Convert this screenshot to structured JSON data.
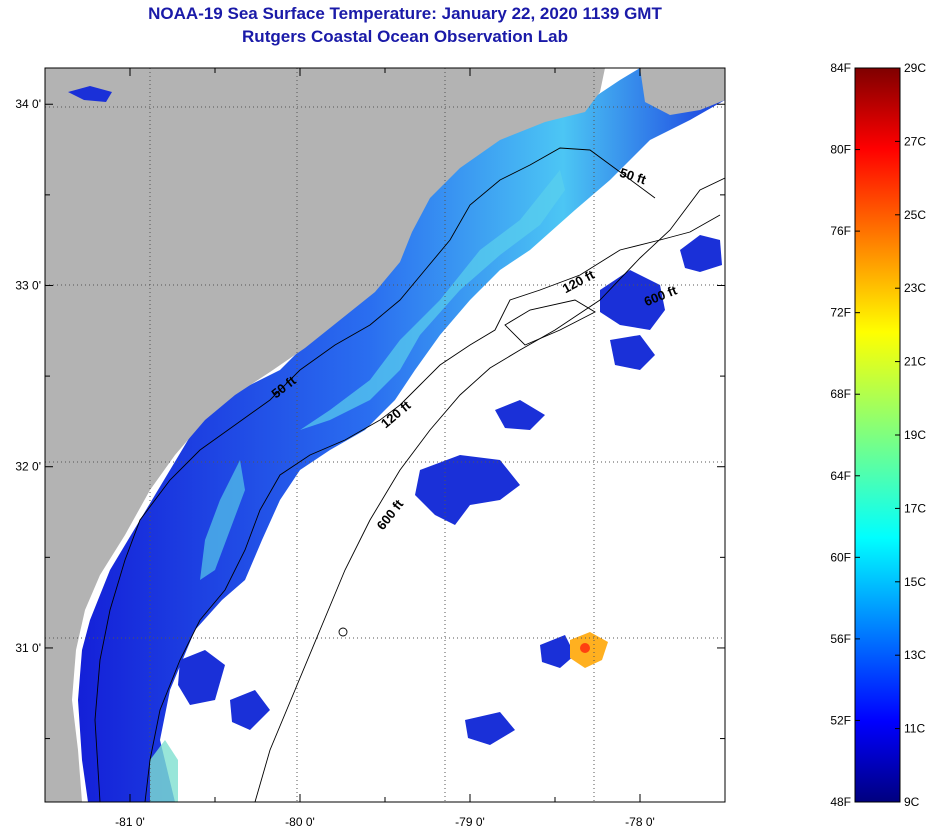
{
  "header": {
    "title": "NOAA-19 Sea Surface Temperature:  January 22, 2020 1139 GMT",
    "subtitle": "Rutgers Coastal Ocean Observation Lab"
  },
  "map": {
    "lon_range": [
      -81.5,
      -77.5
    ],
    "lat_range": [
      30.15,
      34.2
    ],
    "lon_ticks": [
      {
        "value": -81,
        "label": "-81 0'"
      },
      {
        "value": -80,
        "label": "-80 0'"
      },
      {
        "value": -79,
        "label": "-79 0'"
      },
      {
        "value": -78,
        "label": "-78 0'"
      }
    ],
    "lat_ticks": [
      {
        "value": 34,
        "label": "34 0'"
      },
      {
        "value": 33,
        "label": "33 0'"
      },
      {
        "value": 32,
        "label": "32 0'"
      },
      {
        "value": 31,
        "label": "31 0'"
      }
    ],
    "contour_labels": [
      {
        "text": "50 ft",
        "lon": -78.05,
        "lat": 33.58,
        "rot": 18
      },
      {
        "text": "120 ft",
        "lon": -78.35,
        "lat": 33.0,
        "rot": -28
      },
      {
        "text": "600 ft",
        "lon": -77.87,
        "lat": 32.92,
        "rot": -22
      },
      {
        "text": "50 ft",
        "lon": -80.08,
        "lat": 32.42,
        "rot": -38
      },
      {
        "text": "120 ft",
        "lon": -79.42,
        "lat": 32.27,
        "rot": -40
      },
      {
        "text": "600 ft",
        "lon": -79.45,
        "lat": 31.72,
        "rot": -52
      }
    ],
    "land_color": "#b3b3b3",
    "grid": true
  },
  "colorbar": {
    "fahrenheit_labels": [
      "84F",
      "80F",
      "76F",
      "72F",
      "68F",
      "64F",
      "60F",
      "56F",
      "52F",
      "48F"
    ],
    "celsius_labels": [
      "29C",
      "27C",
      "25C",
      "23C",
      "21C",
      "19C",
      "17C",
      "15C",
      "13C",
      "11C",
      "9C"
    ],
    "colormap": "jet",
    "range_c": [
      9,
      29
    ]
  }
}
